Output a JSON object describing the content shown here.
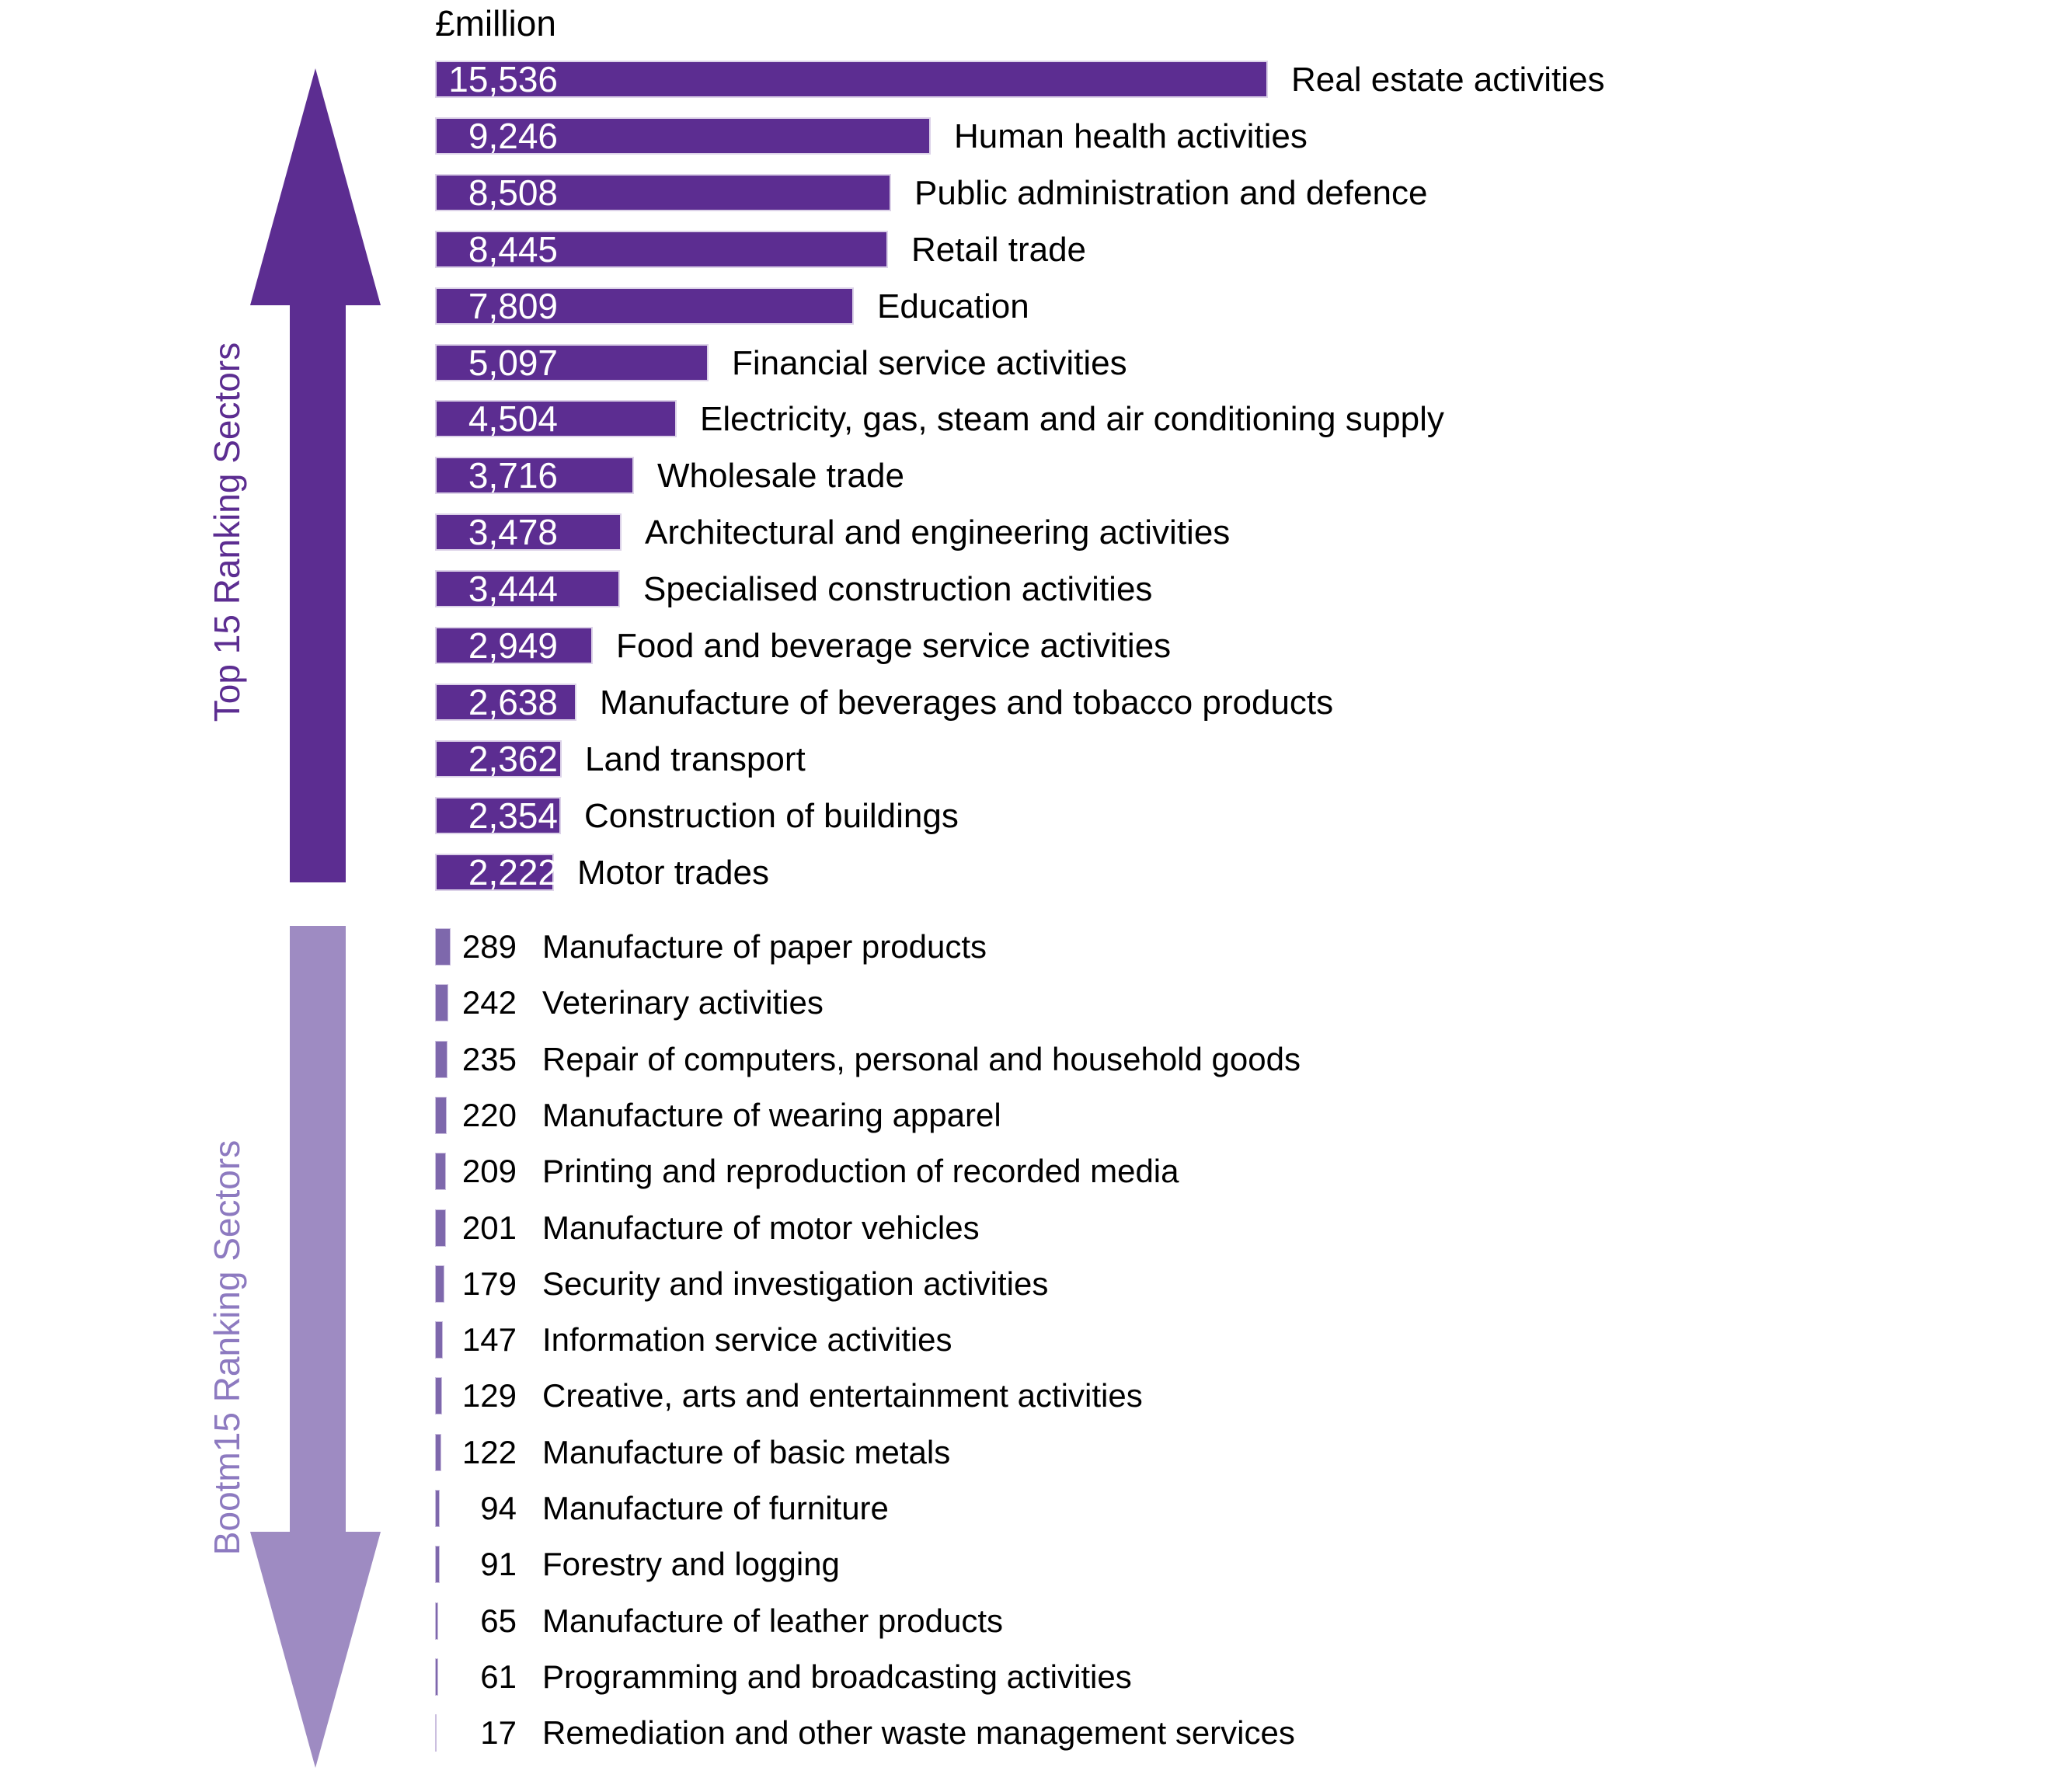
{
  "unit_label": "£million",
  "colors": {
    "top_bar": "#5c2d91",
    "top_arrow": "#5c2d91",
    "top_label_text": "#5c2d91",
    "bottom_bar": "#7e68ac",
    "bottom_arrow": "#9e8bc2",
    "bottom_label_text": "#8d7ac0",
    "bar_value_text_top": "#ffffff",
    "category_text": "#000000",
    "background": "#ffffff"
  },
  "chart_data": {
    "type": "bar",
    "orientation": "horizontal",
    "unit_label": "£million",
    "value_axis_max": 15536,
    "grid": false,
    "legend": false,
    "sections": [
      {
        "name": "Top 15 Ranking Sectors",
        "arrow_direction": "up",
        "value_label_position": "inside-left-white",
        "categories": [
          "Real estate activities",
          "Human health activities",
          "Public administration and defence",
          "Retail trade",
          "Education",
          "Financial service activities",
          "Electricity, gas, steam and air conditioning supply",
          "Wholesale trade",
          "Architectural and engineering activities",
          "Specialised construction activities",
          "Food and beverage service activities",
          "Manufacture of beverages and tobacco products",
          "Land transport",
          "Construction of buildings",
          "Motor trades"
        ],
        "values": [
          15536,
          9246,
          8508,
          8445,
          7809,
          5097,
          4504,
          3716,
          3478,
          3444,
          2949,
          2638,
          2362,
          2354,
          2222
        ],
        "value_labels": [
          "15,536",
          "9,246",
          "8,508",
          "8,445",
          "7,809",
          "5,097",
          "4,504",
          "3,716",
          "3,478",
          "3,444",
          "2,949",
          "2,638",
          "2,362",
          "2,354",
          "2,222"
        ]
      },
      {
        "name": "Bootm15 Ranking Sectors",
        "arrow_direction": "down",
        "value_label_position": "outside-right-black",
        "categories": [
          "Manufacture of paper products",
          "Veterinary activities",
          "Repair of computers, personal and household goods",
          "Manufacture of wearing apparel",
          "Printing and reproduction of recorded media",
          "Manufacture of motor vehicles",
          "Security and investigation activities",
          "Information service activities",
          "Creative, arts and entertainment activities",
          "Manufacture of basic metals",
          "Manufacture of furniture",
          "Forestry and logging",
          "Manufacture of leather products",
          "Programming and broadcasting activities",
          "Remediation and other waste management services"
        ],
        "values": [
          289,
          242,
          235,
          220,
          209,
          201,
          179,
          147,
          129,
          122,
          94,
          91,
          65,
          61,
          17
        ],
        "value_labels": [
          "289",
          "242",
          "235",
          "220",
          "209",
          "201",
          "179",
          "147",
          "129",
          "122",
          "94",
          "91",
          "65",
          "61",
          "17"
        ]
      }
    ]
  }
}
